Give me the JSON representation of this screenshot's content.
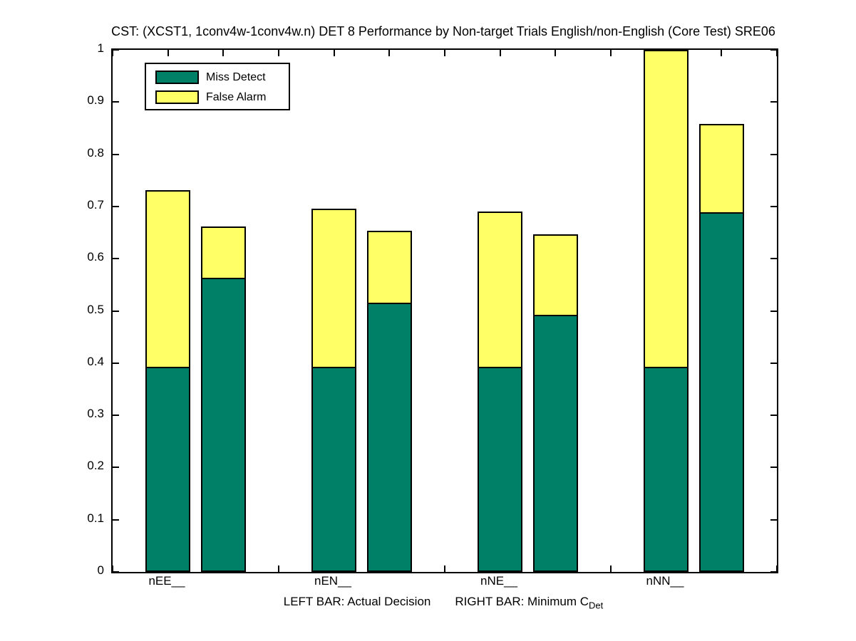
{
  "chart_data": {
    "type": "bar",
    "subtype": "stacked-pairs",
    "title": "CST: (XCST1, 1conv4w-1conv4w.n) DET 8 Performance by Non-target Trials English/non-English (Core Test) SRE06",
    "xlabel_left": "LEFT BAR: Actual Decision",
    "xlabel_right": "RIGHT BAR: Minimum C",
    "xlabel_subscript": "Det",
    "categories": [
      "nEE__",
      "nEN__",
      "nNE__",
      "nNN__"
    ],
    "legend": [
      {
        "name": "Miss Detect",
        "color": "#008066"
      },
      {
        "name": "False Alarm",
        "color": "#ffff66"
      }
    ],
    "ylim": [
      0,
      1
    ],
    "ytick_labels": [
      "0",
      "0.1",
      "0.2",
      "0.3",
      "0.4",
      "0.5",
      "0.6",
      "0.7",
      "0.8",
      "0.9",
      "1"
    ],
    "bar_meanings": {
      "left": "Actual Decision",
      "right": "Minimum C_Det"
    },
    "bars": [
      {
        "category": "nEE__",
        "bar": "actual",
        "miss_detect": 0.393,
        "false_alarm": 0.338,
        "top": 0.731,
        "clipped": false
      },
      {
        "category": "nEE__",
        "bar": "minimum",
        "miss_detect": 0.563,
        "false_alarm": 0.099,
        "top": 0.662,
        "clipped": false
      },
      {
        "category": "nEN__",
        "bar": "actual",
        "miss_detect": 0.393,
        "false_alarm": 0.303,
        "top": 0.696,
        "clipped": false
      },
      {
        "category": "nEN__",
        "bar": "minimum",
        "miss_detect": 0.516,
        "false_alarm": 0.137,
        "top": 0.653,
        "clipped": false
      },
      {
        "category": "nNE__",
        "bar": "actual",
        "miss_detect": 0.393,
        "false_alarm": 0.297,
        "top": 0.69,
        "clipped": false
      },
      {
        "category": "nNE__",
        "bar": "minimum",
        "miss_detect": 0.493,
        "false_alarm": 0.153,
        "top": 0.646,
        "clipped": false
      },
      {
        "category": "nNN__",
        "bar": "actual",
        "miss_detect": 0.393,
        "false_alarm": 0.607,
        "top": 1.0,
        "clipped": true
      },
      {
        "category": "nNN__",
        "bar": "minimum",
        "miss_detect": 0.689,
        "false_alarm": 0.169,
        "top": 0.858,
        "clipped": false
      }
    ],
    "colors": {
      "miss_detect": "#008066",
      "false_alarm": "#ffff66",
      "axis": "#000000"
    },
    "grid": false,
    "legend_position": "top-left-inside"
  }
}
